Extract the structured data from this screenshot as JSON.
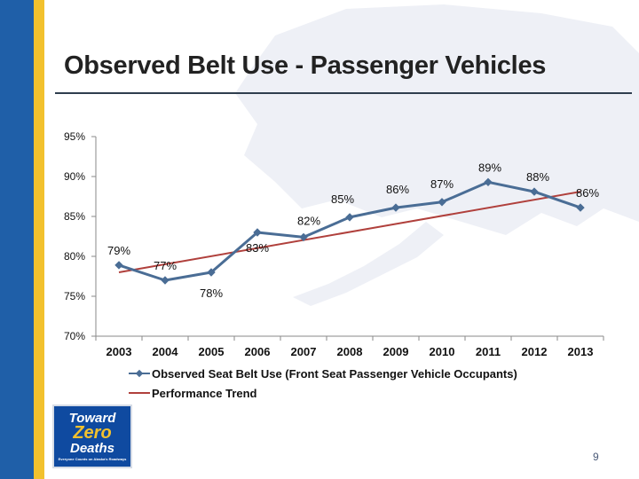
{
  "page": {
    "title": "Observed Belt Use - Passenger Vehicles",
    "page_number": "9"
  },
  "logo": {
    "line1": "Toward",
    "line2": "Zero",
    "line3": "Deaths",
    "tagline": "Everyone Counts on Alaska's Roadways"
  },
  "colors": {
    "series": "#4a6d95",
    "trend": "#b0403c",
    "axis": "#8a8a8a",
    "stripe_blue": "#1f5fa8",
    "stripe_gold": "#f2c12e"
  },
  "chart_data": {
    "type": "line",
    "title": "",
    "xlabel": "",
    "ylabel": "",
    "ylim": [
      70,
      95
    ],
    "yticks": [
      70,
      75,
      80,
      85,
      90,
      95
    ],
    "ytick_labels": [
      "70%",
      "75%",
      "80%",
      "85%",
      "90%",
      "95%"
    ],
    "categories": [
      "2003",
      "2004",
      "2005",
      "2006",
      "2007",
      "2008",
      "2009",
      "2010",
      "2011",
      "2012",
      "2013"
    ],
    "series": [
      {
        "name": "Observed Seat Belt Use (Front Seat Passenger Vehicle Occupants)",
        "values": [
          78.9,
          77.0,
          78.0,
          83.0,
          82.4,
          84.9,
          86.1,
          86.8,
          89.3,
          88.1,
          86.1
        ],
        "data_labels": [
          "79%",
          "77%",
          "78%",
          "83%",
          "82%",
          "85%",
          "86%",
          "87%",
          "89%",
          "88%",
          "86%"
        ]
      },
      {
        "name": "Performance Trend",
        "type": "linear-trend",
        "start": 78.0,
        "end": 88.1
      }
    ],
    "legend_position": "bottom",
    "grid": false
  }
}
